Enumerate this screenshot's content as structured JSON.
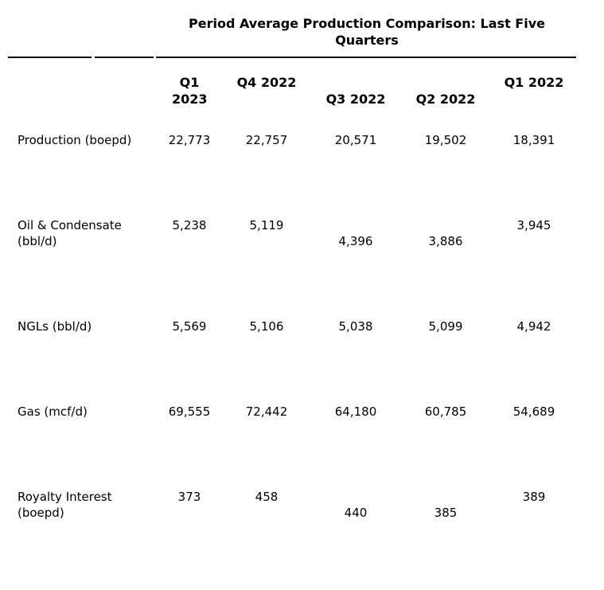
{
  "colors": {
    "background": "#ffffff",
    "text": "#000000",
    "rule": "#000000"
  },
  "table": {
    "title": "Period Average Production Comparison: Last Five Quarters",
    "columns": [
      "Q1 2023",
      "Q4 2022",
      "Q3 2022",
      "Q2 2022",
      "Q1 2022"
    ],
    "rows": [
      {
        "label": "Production (boepd)",
        "values": [
          "22,773",
          "22,757",
          "20,571",
          "19,502",
          "18,391"
        ]
      },
      {
        "label": "Oil & Condensate (bbl/d)",
        "values": [
          "5,238",
          "5,119",
          "4,396",
          "3,886",
          "3,945"
        ]
      },
      {
        "label": "NGLs (bbl/d)",
        "values": [
          "5,569",
          "5,106",
          "5,038",
          "5,099",
          "4,942"
        ]
      },
      {
        "label": "Gas (mcf/d)",
        "values": [
          "69,555",
          "72,442",
          "64,180",
          "60,785",
          "54,689"
        ]
      },
      {
        "label": "Royalty Interest (boepd)",
        "values": [
          "373",
          "458",
          "440",
          "385",
          "389"
        ]
      }
    ]
  }
}
